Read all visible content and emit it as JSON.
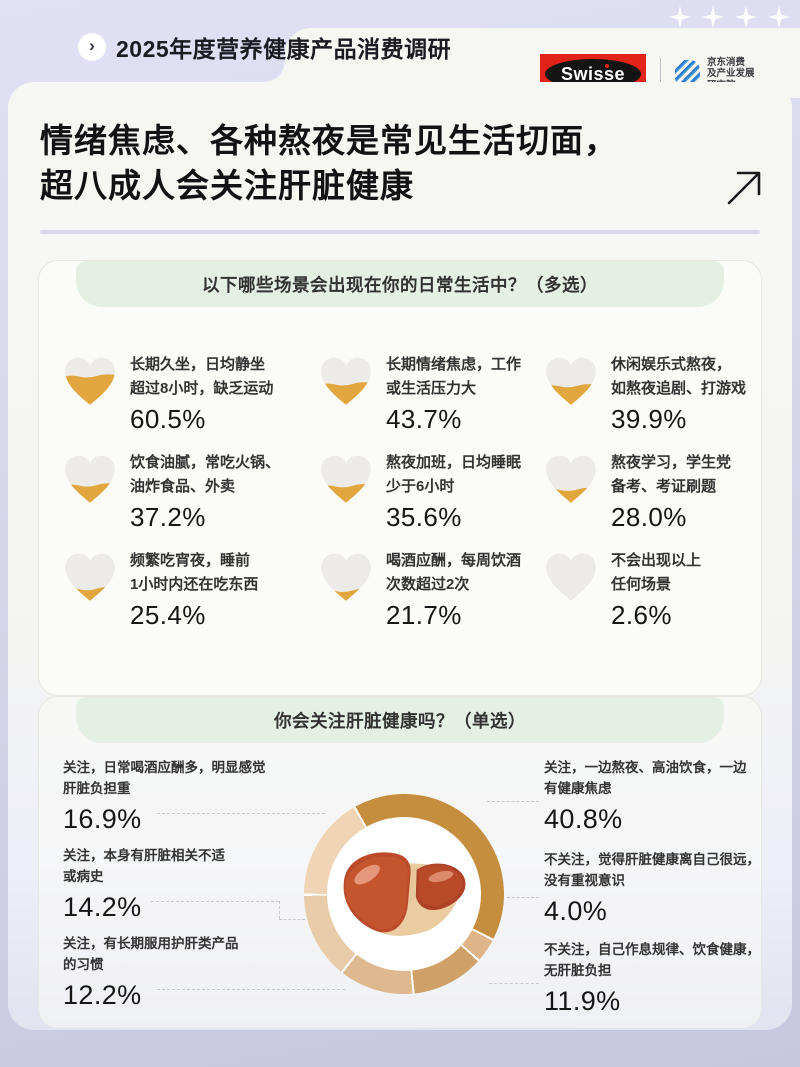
{
  "page": {
    "breadcrumb_icon": "›",
    "breadcrumb": "2025年度营养健康产品消费调研",
    "title_line1": "情绪焦虑、各种熬夜是常见生活切面，",
    "title_line2": "超八成人会关注肝脏健康",
    "brand": {
      "name": "Swisse",
      "partner_lines": [
        "京东消费",
        "及产业发展",
        "研究院"
      ]
    }
  },
  "colors": {
    "accent_lavender": "#D7D7EC",
    "brand_red": "#E2231A",
    "partner_blue": "#2E7FD0",
    "banner_green": "#E5F0E4",
    "heart_base": "#ECEBE7",
    "heart_fill": "#E2A63F"
  },
  "chart_data": [
    {
      "type": "pictogram",
      "icon": "heart",
      "question": "以下哪些场景会出现在你的日常生活中？（多选）",
      "unit": "%",
      "items": [
        {
          "line1": "长期久坐，日均静坐",
          "line2": "超过8小时，缺乏运动",
          "value": 60.5,
          "display": "60.5%"
        },
        {
          "line1": "长期情绪焦虑，工作",
          "line2": "或生活压力大",
          "value": 43.7,
          "display": "43.7%"
        },
        {
          "line1": "休闲娱乐式熬夜，",
          "line2": "如熬夜追剧、打游戏",
          "value": 39.9,
          "display": "39.9%"
        },
        {
          "line1": "饮食油腻，常吃火锅、",
          "line2": "油炸食品、外卖",
          "value": 37.2,
          "display": "37.2%"
        },
        {
          "line1": "熬夜加班，日均睡眠",
          "line2": "少于6小时",
          "value": 35.6,
          "display": "35.6%"
        },
        {
          "line1": "熬夜学习，学生党",
          "line2": "备考、考证刷题",
          "value": 28.0,
          "display": "28.0%"
        },
        {
          "line1": "频繁吃宵夜，睡前",
          "line2": "1小时内还在吃东西",
          "value": 25.4,
          "display": "25.4%"
        },
        {
          "line1": "喝酒应酬，每周饮酒",
          "line2": "次数超过2次",
          "value": 21.7,
          "display": "21.7%"
        },
        {
          "line1": "不会出现以上",
          "line2": "任何场景",
          "value": 2.6,
          "display": "2.6%"
        }
      ]
    },
    {
      "type": "donut",
      "question": "你会关注肝脏健康吗？（单选）",
      "center_icon": "liver-illustration",
      "start_angle_deg": 331,
      "segments": [
        {
          "label": "关注，一边熬夜、高油饮食，一边有健康焦虑",
          "value": 40.8,
          "color": "#C48E3E"
        },
        {
          "label": "不关注，觉得肝脏健康离自己很远，没有重视意识",
          "value": 4.0,
          "color": "#DDB588"
        },
        {
          "label": "不关注，自己作息规律、饮食健康，无肝脏负担",
          "value": 11.9,
          "color": "#CFA168"
        },
        {
          "label": "关注，有长期服用护肝类产品的习惯",
          "value": 12.2,
          "color": "#DEB88F"
        },
        {
          "label": "关注，本身有肝脏相关不适或病史",
          "value": 14.2,
          "color": "#E8CBA8"
        },
        {
          "label": "关注，日常喝酒应酬多，明显感觉肝脏负担重",
          "value": 16.9,
          "color": "#EFD5B5"
        }
      ],
      "left_labels": [
        {
          "line1": "关注，日常喝酒应酬多，明显感觉",
          "line2": "肝脏负担重",
          "display": "16.9%"
        },
        {
          "line1": "关注，本身有肝脏相关不适",
          "line2": "或病史",
          "display": "14.2%"
        },
        {
          "line1": "关注，有长期服用护肝类产品",
          "line2": "的习惯",
          "display": "12.2%"
        }
      ],
      "right_labels": [
        {
          "line1": "关注，一边熬夜、高油饮食，一边",
          "line2": "有健康焦虑",
          "display": "40.8%"
        },
        {
          "line1": "不关注，觉得肝脏健康离自己很远，",
          "line2": "没有重视意识",
          "display": "4.0%"
        },
        {
          "line1": "不关注，自己作息规律、饮食健康，",
          "line2": "无肝脏负担",
          "display": "11.9%"
        }
      ]
    }
  ]
}
